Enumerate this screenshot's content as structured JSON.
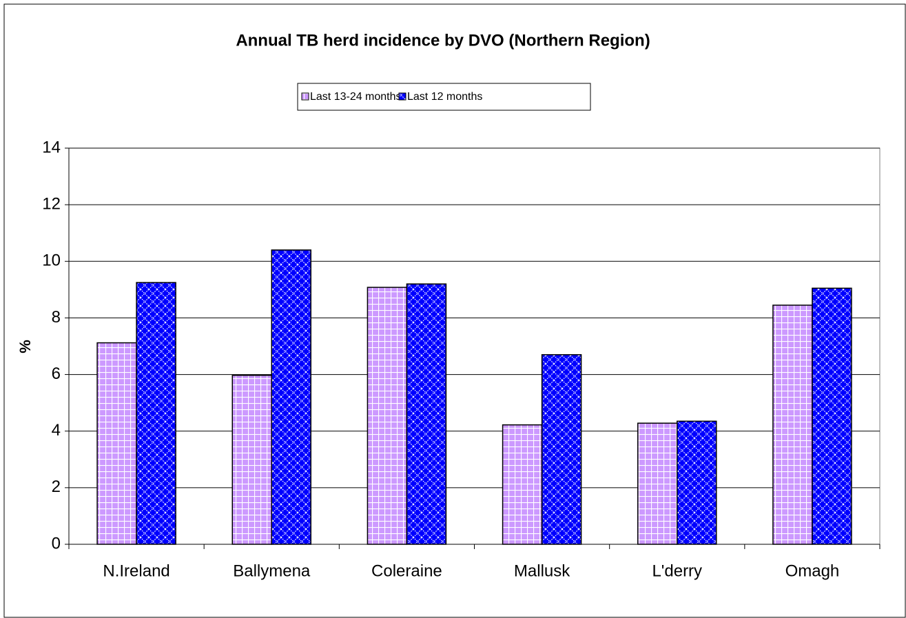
{
  "chart_data": {
    "type": "bar",
    "title": "Annual TB herd incidence by DVO (Northern Region)",
    "y_label": "%",
    "categories": [
      "N.Ireland",
      "Ballymena",
      "Coleraine",
      "Mallusk",
      "L'derry",
      "Omagh"
    ],
    "series": [
      {
        "name": "Last 13-24 months",
        "color": "#cc99ff",
        "values": [
          7.12,
          5.97,
          9.08,
          4.22,
          4.28,
          8.45
        ]
      },
      {
        "name": "Last 12 months",
        "color": "#0000ff",
        "values": [
          9.25,
          10.4,
          9.2,
          6.7,
          4.35,
          9.05
        ]
      }
    ],
    "ylim": [
      0,
      14
    ],
    "yticks": [
      0,
      2,
      4,
      6,
      8,
      10,
      12,
      14
    ],
    "grid": true,
    "legend": "top"
  }
}
